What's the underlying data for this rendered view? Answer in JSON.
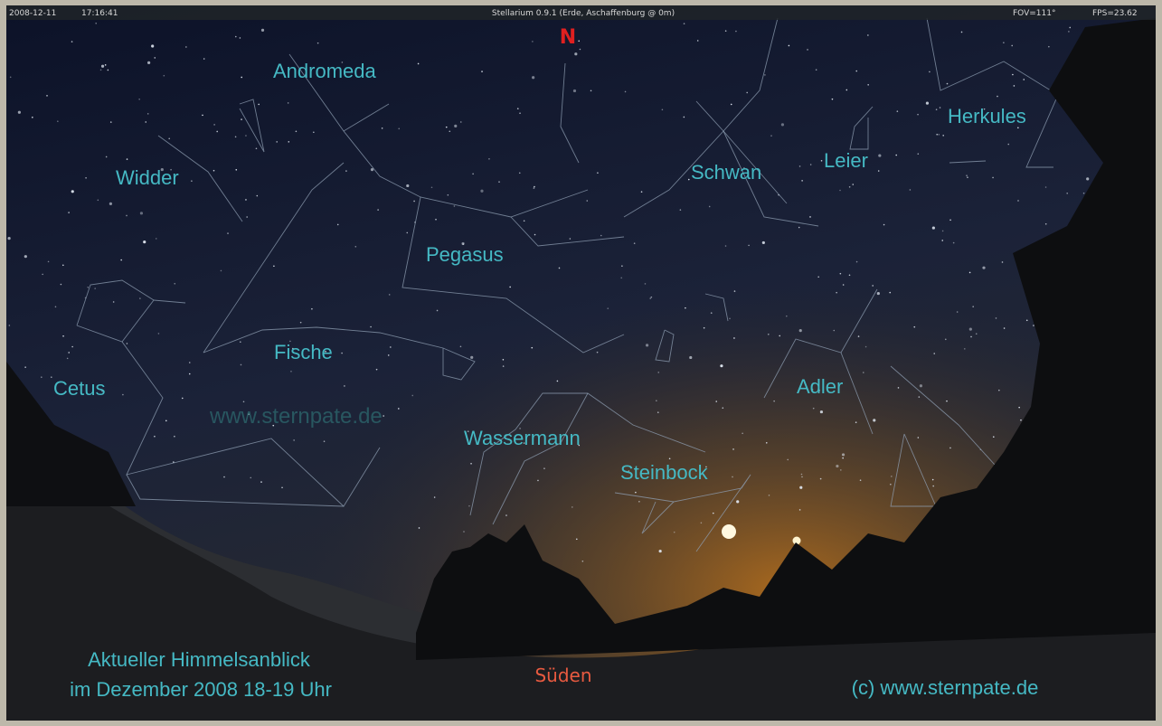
{
  "status_bar": {
    "date": "2008-12-11",
    "time": "17:16:41",
    "title": "Stellarium 0.9.1 (Erde, Aschaffenburg @ 0m)",
    "fov": "FOV=111°",
    "fps": "FPS=23.62"
  },
  "compass": {
    "north": "N",
    "south": "Süden"
  },
  "constellations": [
    "Andromeda",
    "Widder",
    "Pegasus",
    "Fische",
    "Cetus",
    "Wassermann",
    "Steinbock",
    "Schwan",
    "Leier",
    "Herkules",
    "Adler"
  ],
  "watermark": "www.sternpate.de",
  "caption": {
    "line1": "Aktueller Himmelsanblick",
    "line2": "im Dezember 2008  18-19 Uhr",
    "copyright": "(c) www.sternpate.de"
  }
}
